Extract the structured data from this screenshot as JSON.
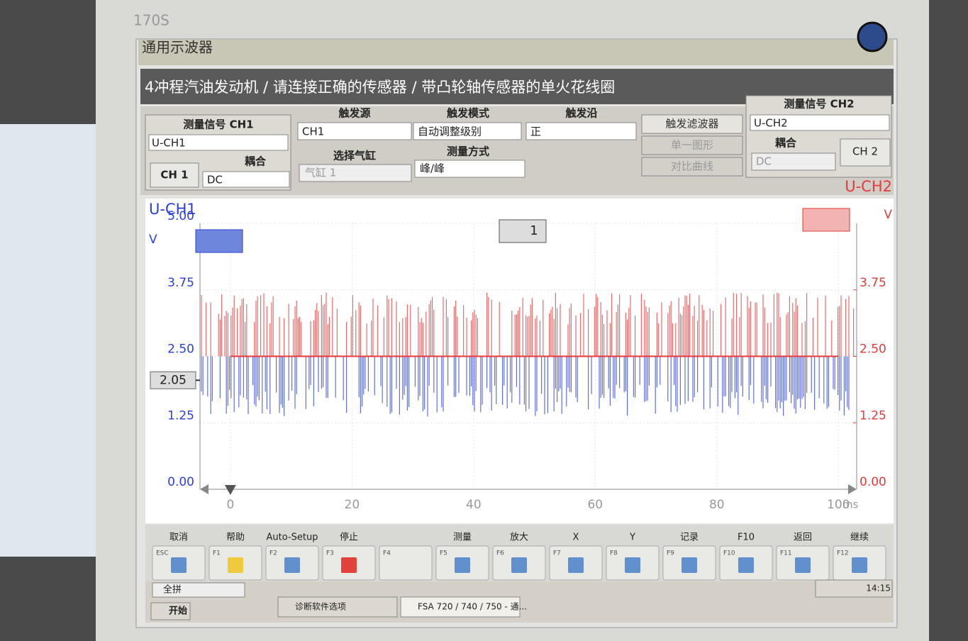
{
  "bezel": {
    "model": "170S"
  },
  "header": {
    "title": "通用示波器",
    "breadcrumb": "4冲程汽油发动机 / 请连接正确的传感器 / 带凸轮轴传感器的单火花线圈"
  },
  "ch1": {
    "title": "测量信号 CH1",
    "signal": "U-CH1",
    "button": "CH 1",
    "coupling_label": "耦合",
    "coupling": "DC"
  },
  "trigger": {
    "source_label": "触发源",
    "source": "CH1",
    "mode_label": "触发模式",
    "mode": "自动调整级别",
    "edge_label": "触发沿",
    "edge": "正",
    "cylinder_label": "选择气缸",
    "cylinder": "气缸 1",
    "measure_label": "测量方式",
    "measure": "峰/峰",
    "buttons": [
      "触发滤波器",
      "单一图形",
      "对比曲线"
    ]
  },
  "ch2": {
    "title": "测量信号 CH2",
    "signal": "U-CH2",
    "coupling_label": "耦合",
    "coupling": "DC",
    "button": "CH 2"
  },
  "chart_data": {
    "type": "line",
    "y_unit": "V",
    "y2_unit": "V",
    "x_unit": "ms",
    "x": [
      0,
      100
    ],
    "xlim": [
      -5,
      103
    ],
    "xticks": [
      0,
      20,
      40,
      60,
      80,
      100
    ],
    "ylim": [
      0,
      5
    ],
    "yticks": [
      {
        "value": 0,
        "label": "0.00"
      },
      1.25,
      {
        "value": 2.5,
        "label": "2.50"
      },
      3.75,
      {
        "value": 5,
        "label": "5.00"
      }
    ],
    "y2lim": [
      0,
      5
    ],
    "y2ticks": [
      {
        "value": 0,
        "label": "0.00"
      },
      1.25,
      {
        "value": 2.5,
        "label": "2.50"
      },
      3.75
    ],
    "grid": true,
    "trigger_level": 2.05,
    "trigger_time": 0,
    "trigger_channel": "1",
    "series": [
      {
        "name": "U-CH1",
        "color": "#2b3fe0",
        "values": [
          2.5,
          2.5
        ]
      },
      {
        "name": "U-CH2",
        "color": "#e83a3a",
        "axis": "y2",
        "values": [
          2.5,
          2.5
        ]
      }
    ]
  },
  "function_keys": [
    {
      "label": "取消",
      "key": "ESC"
    },
    {
      "label": "帮助",
      "key": "F1"
    },
    {
      "label": "Auto-Setup",
      "key": "F2"
    },
    {
      "label": "停止",
      "key": "F3"
    },
    {
      "key": "F4"
    },
    {
      "label": "测量",
      "key": "F5"
    },
    {
      "label": "放大",
      "key": "F6"
    },
    {
      "label": "X",
      "key": "F7"
    },
    {
      "label": "Y",
      "key": "F8"
    },
    {
      "label": "记录",
      "key": "F9"
    },
    {
      "label": "F10",
      "key": "F10"
    },
    {
      "label": "返回",
      "key": "F11"
    },
    {
      "label": "继续",
      "key": "F12"
    }
  ],
  "taskbar": {
    "ime": "全拼",
    "start": "开始",
    "tasks": [
      "诊断软件选项",
      "FSA 720 / 740 / 750 - 通..."
    ],
    "clock": "14:15"
  }
}
